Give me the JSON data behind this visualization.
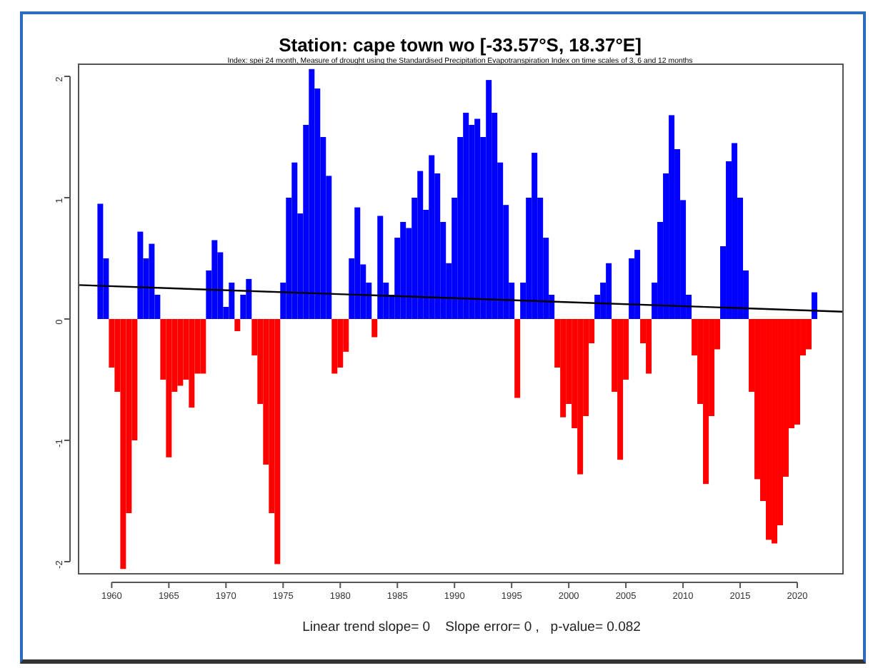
{
  "chart_data": {
    "type": "bar",
    "title": "Station: cape town wo [-33.57°S, 18.37°E]",
    "subtitle": "Index: spei 24 month, Measure of drought using the Standardised Precipitation Evapotranspiration Index on time scales of 3, 6 and 12 months",
    "annotations": [
      "Linear trend slope= 0    Slope error= 0 ,   p-value= 0.082"
    ],
    "xlim": [
      1957.1,
      2024
    ],
    "xticks": [
      1960,
      1965,
      1970,
      1975,
      1980,
      1985,
      1990,
      1995,
      2000,
      2005,
      2010,
      2015,
      2020
    ],
    "ylim": [
      -2.1,
      2.1
    ],
    "yticks": [
      2,
      1,
      0,
      -1,
      -2
    ],
    "grid": false,
    "series": [
      {
        "color": "#0000ff",
        "x": [
          1959,
          1959.5,
          1962.5,
          1963,
          1963.5,
          1964,
          1968.5,
          1969,
          1969.5,
          1970,
          1970.5,
          1971.5,
          1972,
          1975,
          1975.5,
          1976,
          1976.5,
          1977,
          1977.5,
          1978,
          1978.5,
          1979,
          1981,
          1981.5,
          1982,
          1982.5,
          1983.5,
          1984,
          1984.5,
          1985,
          1985.5,
          1986,
          1986.5,
          1987,
          1987.5,
          1988,
          1988.5,
          1989,
          1989.5,
          1990,
          1990.5,
          1991,
          1991.5,
          1992,
          1992.5,
          1993,
          1993.5,
          1994,
          1994.5,
          1995,
          1996,
          1996.5,
          1997,
          1997.5,
          1998,
          1998.5,
          2002.5,
          2003,
          2003.5,
          2005.5,
          2006,
          2007.5,
          2008,
          2008.5,
          2009,
          2009.5,
          2010,
          2010.5,
          2013.5,
          2014,
          2014.5,
          2015,
          2015.5,
          2021.5
        ],
        "values": [
          0.95,
          0.5,
          0.72,
          0.5,
          0.62,
          0.2,
          0.4,
          0.65,
          0.55,
          0.1,
          0.3,
          0.2,
          0.33,
          0.3,
          1.0,
          1.29,
          0.87,
          1.6,
          2.06,
          1.9,
          1.5,
          1.18,
          0.5,
          0.92,
          0.45,
          0.3,
          0.85,
          0.3,
          0.2,
          0.67,
          0.8,
          0.75,
          1.0,
          1.22,
          0.9,
          1.35,
          1.2,
          0.8,
          0.46,
          1.0,
          1.5,
          1.7,
          1.6,
          1.65,
          1.5,
          1.97,
          1.7,
          1.29,
          0.94,
          0.3,
          0.3,
          1.0,
          1.37,
          1.0,
          0.67,
          0.2,
          0.2,
          0.3,
          0.46,
          0.5,
          0.57,
          0.3,
          0.8,
          1.2,
          1.68,
          1.4,
          0.98,
          0.2,
          0.6,
          1.3,
          1.45,
          1.0,
          0.4,
          0.22
        ]
      },
      {
        "color": "#ff0000",
        "x": [
          1960,
          1960.5,
          1961,
          1961.5,
          1962,
          1964.5,
          1965,
          1965.5,
          1966,
          1966.5,
          1967,
          1967.5,
          1968,
          1971,
          1972.5,
          1973,
          1973.5,
          1974,
          1974.5,
          1979.5,
          1980,
          1980.5,
          1983,
          1995.5,
          1999,
          1999.5,
          2000,
          2000.5,
          2001,
          2001.5,
          2002,
          2004,
          2004.5,
          2005,
          2006.5,
          2007,
          2011,
          2011.5,
          2012,
          2012.5,
          2013,
          2016,
          2016.5,
          2017,
          2017.5,
          2018,
          2018.5,
          2019,
          2019.5,
          2020,
          2020.5,
          2021
        ],
        "values": [
          -0.4,
          -0.6,
          -2.06,
          -1.6,
          -1.0,
          -0.5,
          -1.14,
          -0.6,
          -0.55,
          -0.5,
          -0.73,
          -0.45,
          -0.45,
          -0.1,
          -0.3,
          -0.7,
          -1.2,
          -1.6,
          -2.02,
          -0.45,
          -0.4,
          -0.27,
          -0.15,
          -0.65,
          -0.4,
          -0.81,
          -0.7,
          -0.9,
          -1.28,
          -0.8,
          -0.2,
          -0.6,
          -1.16,
          -0.5,
          -0.2,
          -0.45,
          -0.3,
          -0.7,
          -1.36,
          -0.8,
          -0.25,
          -0.6,
          -1.32,
          -1.5,
          -1.82,
          -1.85,
          -1.7,
          -1.3,
          -0.9,
          -0.87,
          -0.3,
          -0.25
        ]
      },
      {
        "type": "line",
        "color": "#000000",
        "x": [
          1957.1,
          2024
        ],
        "values": [
          0.28,
          0.06
        ]
      }
    ]
  }
}
